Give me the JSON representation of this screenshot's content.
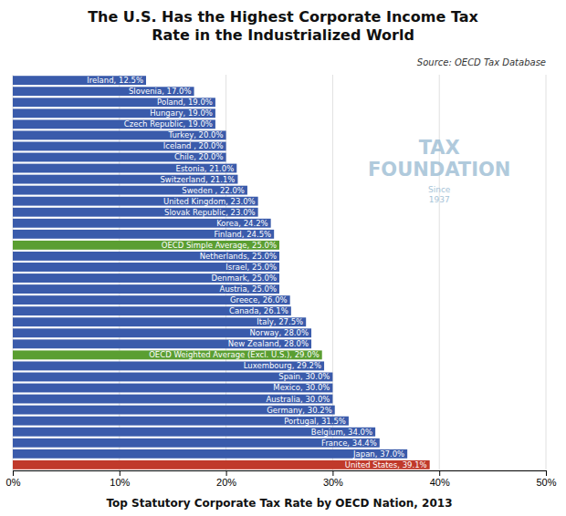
{
  "chart_data": {
    "type": "bar",
    "orientation": "horizontal",
    "title": "The U.S. Has the Highest Corporate Income Tax\nRate in the Industrialized World",
    "x_label": "Top Statutory Corporate Tax Rate by OECD Nation, 2013",
    "annotations": [
      "Source: OECD Tax Database",
      "TAX\nFOUNDATION",
      "Since\n1937"
    ],
    "categories": [
      "Ireland",
      "Slovenia",
      "Poland",
      "Hungary",
      "Czech Republic",
      "Turkey",
      "Iceland ",
      "Chile",
      "Estonia",
      "Switzerland",
      "Sweden  ",
      "United Kingdom",
      "Slovak Republic",
      "Korea",
      "Finland",
      "OECD Simple Average",
      "Netherlands",
      "Israel",
      "Denmark",
      "Austria",
      "Greece",
      "Canada",
      "Italy",
      "Norway",
      "New Zealand",
      "OECD Weighted Average (Excl. U.S.)",
      "Luxembourg",
      "Spain",
      "Mexico",
      "Australia",
      "Germany",
      "Portugal",
      "Belgium",
      "France",
      "Japan",
      "United States"
    ],
    "values": [
      12.5,
      17.0,
      19.0,
      19.0,
      19.0,
      20.0,
      20.0,
      20.0,
      21.0,
      21.1,
      22.0,
      23.0,
      23.0,
      24.2,
      24.5,
      25.0,
      25.0,
      25.0,
      25.0,
      25.0,
      26.0,
      26.1,
      27.5,
      28.0,
      28.0,
      29.0,
      29.2,
      30.0,
      30.0,
      30.0,
      30.2,
      31.5,
      34.0,
      34.4,
      37.0,
      39.1
    ],
    "value_labels": [
      "Ireland, 12.5%",
      "Slovenia, 17.0%",
      "Poland, 19.0%",
      "Hungary, 19.0%",
      "Czech Republic, 19.0%",
      "Turkey, 20.0%",
      "Iceland , 20.0%",
      "Chile, 20.0%",
      "Estonia, 21.0%",
      "Switzerland, 21.1%",
      "Sweden  , 22.0%",
      "United Kingdom, 23.0%",
      "Slovak Republic, 23.0%",
      "Korea, 24.2%",
      "Finland, 24.5%",
      "OECD Simple Average, 25.0%",
      "Netherlands, 25.0%",
      "Israel, 25.0%",
      "Denmark, 25.0%",
      "Austria, 25.0%",
      "Greece, 26.0%",
      "Canada, 26.1%",
      "Italy, 27.5%",
      "Norway, 28.0%",
      "New Zealand, 28.0%",
      "OECD Weighted Average (Excl. U.S.), 29.0%",
      "Luxembourg, 29.2%",
      "Spain, 30.0%",
      "Mexico, 30.0%",
      "Australia, 30.0%",
      "Germany, 30.2%",
      "Portugal, 31.5%",
      "Belgium, 34.0%",
      "France, 34.4%",
      "Japan, 37.0%",
      "United States, 39.1%"
    ],
    "colors": [
      "#3a5bab",
      "#3a5bab",
      "#3a5bab",
      "#3a5bab",
      "#3a5bab",
      "#3a5bab",
      "#3a5bab",
      "#3a5bab",
      "#3a5bab",
      "#3a5bab",
      "#3a5bab",
      "#3a5bab",
      "#3a5bab",
      "#3a5bab",
      "#3a5bab",
      "#5a9e32",
      "#3a5bab",
      "#3a5bab",
      "#3a5bab",
      "#3a5bab",
      "#3a5bab",
      "#3a5bab",
      "#3a5bab",
      "#3a5bab",
      "#3a5bab",
      "#5a9e32",
      "#3a5bab",
      "#3a5bab",
      "#3a5bab",
      "#3a5bab",
      "#3a5bab",
      "#3a5bab",
      "#3a5bab",
      "#3a5bab",
      "#3a5bab",
      "#c0392b"
    ],
    "data_labels": true,
    "xlim": [
      0,
      50
    ],
    "xticks": [
      {
        "value": 0,
        "label": "0%"
      },
      {
        "value": 10,
        "label": "10%"
      },
      {
        "value": 20,
        "label": "20%"
      },
      {
        "value": 30,
        "label": "30%"
      },
      {
        "value": 40,
        "label": "40%"
      },
      {
        "value": 50,
        "label": "50%"
      }
    ],
    "grid": true,
    "tick_labels": "x"
  }
}
